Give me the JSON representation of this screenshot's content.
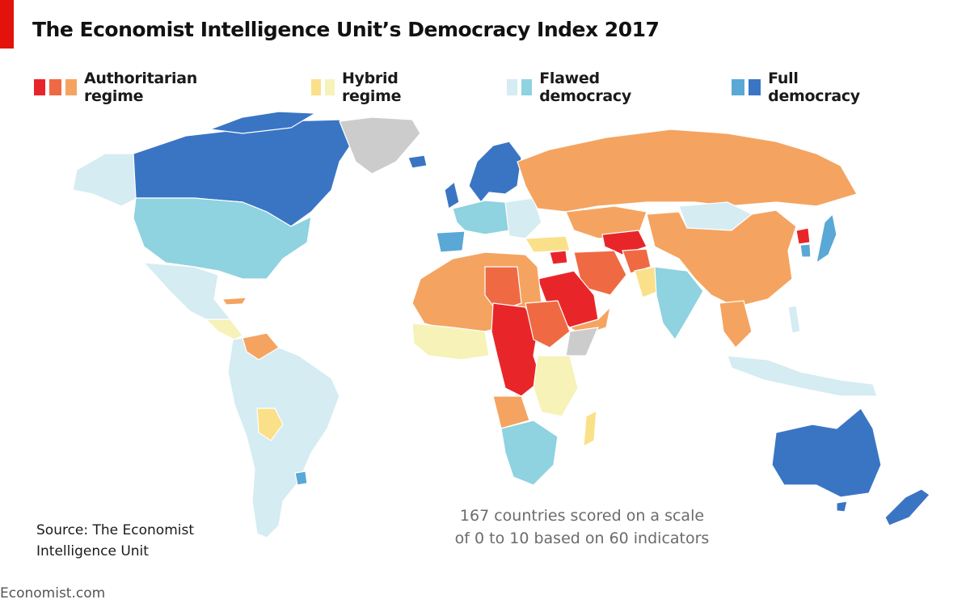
{
  "title": "The Economist Intelligence Unit’s Democracy Index 2017",
  "legend": [
    {
      "label": "Authoritarian regime",
      "colors": [
        "#e8262a",
        "#ef6a43",
        "#f4a460"
      ]
    },
    {
      "label": "Hybrid regime",
      "colors": [
        "#fbe08a",
        "#f6f2b8"
      ]
    },
    {
      "label": "Flawed democracy",
      "colors": [
        "#d4ecf2",
        "#8fd2e0"
      ]
    },
    {
      "label": "Full democracy",
      "colors": [
        "#5aa8d6",
        "#3a75c4"
      ]
    }
  ],
  "no_data_color": "#cccccc",
  "note": {
    "line1": "167 countries scored on a scale",
    "line2": "of 0 to 10 based on 60 indicators"
  },
  "source": {
    "line1": "Source: The Economist",
    "line2": "Intelligence Unit"
  },
  "footer": "Economist.com"
}
